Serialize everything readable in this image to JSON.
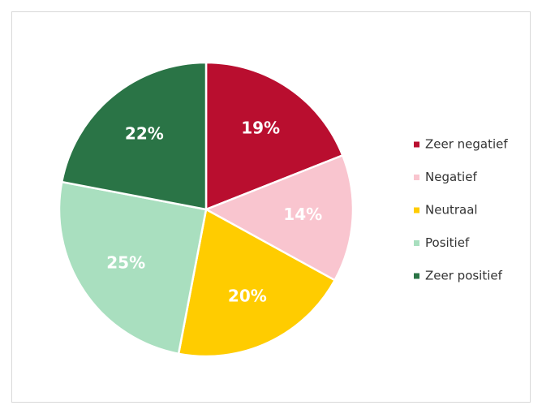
{
  "chart_data": {
    "type": "pie",
    "categories": [
      "Zeer negatief",
      "Negatief",
      "Neutraal",
      "Positief",
      "Zeer positief"
    ],
    "values": [
      19,
      14,
      20,
      25,
      22
    ],
    "value_labels": [
      "19%",
      "14%",
      "20%",
      "25%",
      "22%"
    ],
    "colors": [
      "#b90e2f",
      "#f9c5cf",
      "#ffcc00",
      "#a9dfbf",
      "#2a7446"
    ],
    "legend": "right"
  }
}
